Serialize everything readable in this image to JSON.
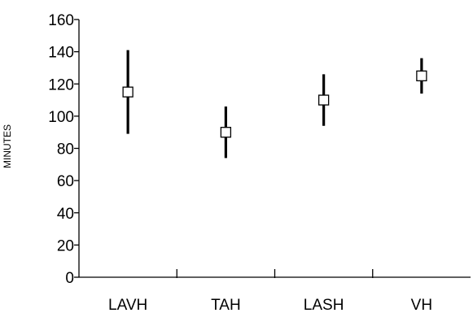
{
  "chart_data": {
    "type": "scatter",
    "title": "",
    "xlabel": "",
    "ylabel": "MINUTES",
    "ylim": [
      0,
      160
    ],
    "yticks": [
      0,
      20,
      40,
      60,
      80,
      100,
      120,
      140,
      160
    ],
    "categories": [
      "LAVH",
      "TAH",
      "LASH",
      "VH"
    ],
    "series": [
      {
        "values": [
          115,
          90,
          110,
          125
        ],
        "low": [
          89,
          74,
          94,
          114
        ],
        "high": [
          141,
          106,
          126,
          136
        ]
      }
    ],
    "grid": false,
    "legend": "none"
  }
}
